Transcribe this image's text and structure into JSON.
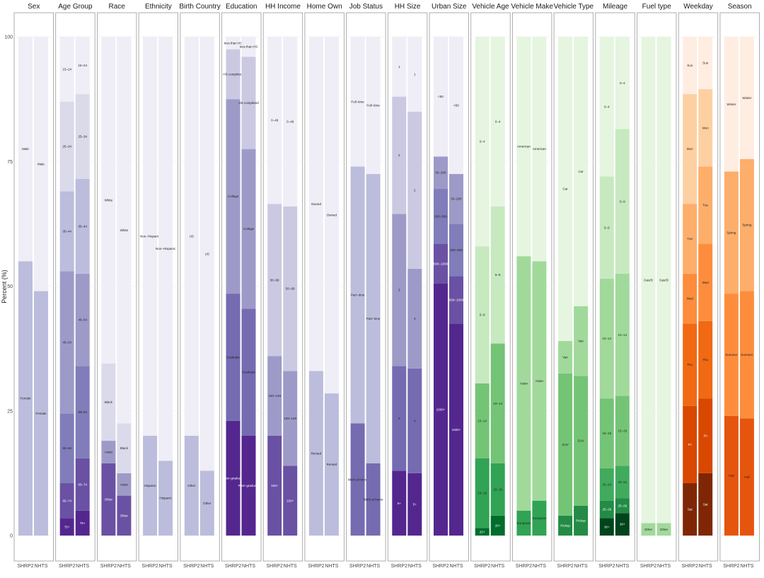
{
  "chart_data": {
    "type": "bar",
    "stacked": true,
    "ylabel": "Percent (%)",
    "ylim": [
      0,
      100
    ],
    "yticks": [
      0,
      25,
      50,
      75,
      100
    ],
    "categories": [
      "SHRP2",
      "NHTS"
    ],
    "panels": [
      {
        "title": "Sex",
        "segments": [
          {
            "label": "Female",
            "values": [
              55,
              49
            ],
            "color": "#bcbddc"
          },
          {
            "label": "Male",
            "values": [
              45,
              51
            ],
            "color": "#efedf5"
          }
        ]
      },
      {
        "title": "Age Group",
        "segments": [
          {
            "label": "75+",
            "values": [
              3.5,
              5
            ],
            "color": "#54278f"
          },
          {
            "label": "65–74",
            "values": [
              7,
              10.5
            ],
            "color": "#6a51a3"
          },
          {
            "label": "55–64",
            "values": [
              14,
              18.5
            ],
            "color": "#807dba"
          },
          {
            "label": "45–54",
            "values": [
              28.5,
              18.5
            ],
            "color": "#9e9ac8"
          },
          {
            "label": "35–44",
            "values": [
              16,
              19
            ],
            "color": "#bcbddc"
          },
          {
            "label": "25–34",
            "values": [
              18,
              17
            ],
            "color": "#dadaeb"
          },
          {
            "label": "15–24",
            "values": [
              13,
              11.5
            ],
            "color": "#efedf5"
          }
        ]
      },
      {
        "title": "Race",
        "segments": [
          {
            "label": "Other",
            "values": [
              14.5,
              8
            ],
            "color": "#6a51a3"
          },
          {
            "label": "Asian",
            "values": [
              4.5,
              4.5
            ],
            "color": "#9e9ac8"
          },
          {
            "label": "Black",
            "values": [
              15.5,
              10
            ],
            "color": "#dadaeb"
          },
          {
            "label": "White",
            "values": [
              65.5,
              77.5
            ],
            "color": "#efedf5"
          }
        ]
      },
      {
        "title": "Ethnicity",
        "segments": [
          {
            "label": "Hispanic",
            "values": [
              20,
              15
            ],
            "color": "#bcbddc"
          },
          {
            "label": "Non−Hispanic",
            "values": [
              80,
              85
            ],
            "color": "#efedf5"
          }
        ]
      },
      {
        "title": "Birth Country",
        "segments": [
          {
            "label": "Other",
            "values": [
              20,
              13
            ],
            "color": "#bcbddc"
          },
          {
            "label": "US",
            "values": [
              80,
              87
            ],
            "color": "#efedf5"
          }
        ]
      },
      {
        "title": "Education",
        "segments": [
          {
            "label": "Post−graduate",
            "values": [
              23,
              20
            ],
            "color": "#54278f"
          },
          {
            "label": "Graduate",
            "values": [
              25.5,
              25.5
            ],
            "color": "#756bb1"
          },
          {
            "label": "College",
            "values": [
              39,
              32
            ],
            "color": "#9e9ac8"
          },
          {
            "label": "HS completed",
            "values": [
              10,
              18.5
            ],
            "color": "#cbc9e2"
          },
          {
            "label": "less than HS",
            "values": [
              2.5,
              4
            ],
            "color": "#efedf5"
          }
        ]
      },
      {
        "title": "HH Income",
        "segments": [
          {
            "label": "150+",
            "values": [
              20,
              14
            ],
            "color": "#6a51a3"
          },
          {
            "label": "100−149",
            "values": [
              16,
              19
            ],
            "color": "#9e9ac8"
          },
          {
            "label": "50−99",
            "values": [
              30.5,
              33
            ],
            "color": "#cbc9e2"
          },
          {
            "label": "0−49",
            "values": [
              33.5,
              34
            ],
            "color": "#efedf5"
          }
        ]
      },
      {
        "title": "Home Own",
        "segments": [
          {
            "label": "Rented",
            "values": [
              33,
              28.5
            ],
            "color": "#bcbddc"
          },
          {
            "label": "Owned",
            "values": [
              67,
              71.5
            ],
            "color": "#efedf5"
          }
        ]
      },
      {
        "title": "Job Status",
        "segments": [
          {
            "label": "Work at home",
            "values": [
              22.5,
              14.5
            ],
            "color": "#756bb1"
          },
          {
            "label": "Part−time",
            "values": [
              51.5,
              58
            ],
            "color": "#bcbddc"
          },
          {
            "label": "Full−time",
            "values": [
              26,
              27.5
            ],
            "color": "#efedf5"
          }
        ]
      },
      {
        "title": "HH Size",
        "segments": [
          {
            "label": "5+",
            "values": [
              13,
              12.5
            ],
            "color": "#54278f"
          },
          {
            "label": "4",
            "values": [
              21,
              21
            ],
            "color": "#756bb1"
          },
          {
            "label": "3",
            "values": [
              30.5,
              20
            ],
            "color": "#9e9ac8"
          },
          {
            "label": "2",
            "values": [
              23.5,
              31.5
            ],
            "color": "#cbc9e2"
          },
          {
            "label": "1",
            "values": [
              12,
              15
            ],
            "color": "#efedf5"
          }
        ]
      },
      {
        "title": "Urban Size",
        "segments": [
          {
            "label": "1000+",
            "values": [
              50.5,
              42.5
            ],
            "color": "#54278f"
          },
          {
            "label": "500−1000",
            "values": [
              8,
              9.5
            ],
            "color": "#6a51a3"
          },
          {
            "label": "200−500",
            "values": [
              11,
              10.5
            ],
            "color": "#807dba"
          },
          {
            "label": "50−200",
            "values": [
              6.5,
              10
            ],
            "color": "#9e9ac8"
          },
          {
            "label": "<50",
            "values": [
              24,
              27.5
            ],
            "color": "#efedf5"
          }
        ]
      },
      {
        "title": "Vehicle Age",
        "segments": [
          {
            "label": "20+",
            "values": [
              1.5,
              4
            ],
            "color": "#006d2c"
          },
          {
            "label": "15−19",
            "values": [
              14,
              10.5
            ],
            "color": "#31a354"
          },
          {
            "label": "10−14",
            "values": [
              15,
              24
            ],
            "color": "#74c476"
          },
          {
            "label": "5−9",
            "values": [
              27.5,
              27.5
            ],
            "color": "#c7e9c0"
          },
          {
            "label": "0−4",
            "values": [
              42,
              34
            ],
            "color": "#e5f5e0"
          }
        ]
      },
      {
        "title": "Vehicle Make",
        "segments": [
          {
            "label": "European",
            "values": [
              5,
              7
            ],
            "color": "#31a354"
          },
          {
            "label": "Asian",
            "values": [
              51,
              48
            ],
            "color": "#a1d99b"
          },
          {
            "label": "American",
            "values": [
              44,
              45
            ],
            "color": "#e5f5e0"
          }
        ]
      },
      {
        "title": "Vehicle Type",
        "segments": [
          {
            "label": "Pickup",
            "values": [
              4,
              6
            ],
            "color": "#238b45"
          },
          {
            "label": "SUV",
            "values": [
              28.5,
              26
            ],
            "color": "#74c476"
          },
          {
            "label": "Van",
            "values": [
              6.5,
              14
            ],
            "color": "#a1d99b"
          },
          {
            "label": "Car",
            "values": [
              61,
              54
            ],
            "color": "#e5f5e0"
          }
        ]
      },
      {
        "title": "Mileage",
        "segments": [
          {
            "label": "30+",
            "values": [
              3.5,
              4.5
            ],
            "color": "#00441b"
          },
          {
            "label": "25−29",
            "values": [
              3.5,
              3
            ],
            "color": "#238b45"
          },
          {
            "label": "20−24",
            "values": [
              6.5,
              6.5
            ],
            "color": "#41ab5d"
          },
          {
            "label": "15−19",
            "values": [
              14,
              14
            ],
            "color": "#74c476"
          },
          {
            "label": "10−14",
            "values": [
              24,
              24.5
            ],
            "color": "#a1d99b"
          },
          {
            "label": "5−9",
            "values": [
              20.5,
              29
            ],
            "color": "#c7e9c0"
          },
          {
            "label": "0−4",
            "values": [
              28,
              18.5
            ],
            "color": "#e5f5e0"
          }
        ]
      },
      {
        "title": "Fuel type",
        "segments": [
          {
            "label": "Other",
            "values": [
              2.5,
              2.5
            ],
            "color": "#a1d99b"
          },
          {
            "label": "Gas/D",
            "values": [
              97.5,
              97.5
            ],
            "color": "#e5f5e0"
          }
        ]
      },
      {
        "title": "Weekday",
        "segments": [
          {
            "label": "Sat",
            "values": [
              10.5,
              12.5
            ],
            "color": "#7f2704"
          },
          {
            "label": "Fri",
            "values": [
              15.5,
              15
            ],
            "color": "#d94801"
          },
          {
            "label": "Thu",
            "values": [
              16.5,
              15.5
            ],
            "color": "#f16913"
          },
          {
            "label": "Wed",
            "values": [
              10,
              15.5
            ],
            "color": "#fd8d3c"
          },
          {
            "label": "Tue",
            "values": [
              14,
              15.5
            ],
            "color": "#fdae6b"
          },
          {
            "label": "Mon",
            "values": [
              22,
              15.5
            ],
            "color": "#fdd0a2"
          },
          {
            "label": "Sun",
            "values": [
              11.5,
              10.5
            ],
            "color": "#feede0"
          }
        ]
      },
      {
        "title": "Season",
        "segments": [
          {
            "label": "Fall",
            "values": [
              24,
              23.5
            ],
            "color": "#e6550d"
          },
          {
            "label": "Summer",
            "values": [
              24.5,
              25.5
            ],
            "color": "#fd8d3c"
          },
          {
            "label": "Spring",
            "values": [
              24.5,
              26.5
            ],
            "color": "#fdae6b"
          },
          {
            "label": "Winter",
            "values": [
              27,
              24.5
            ],
            "color": "#feede0"
          }
        ]
      }
    ]
  }
}
